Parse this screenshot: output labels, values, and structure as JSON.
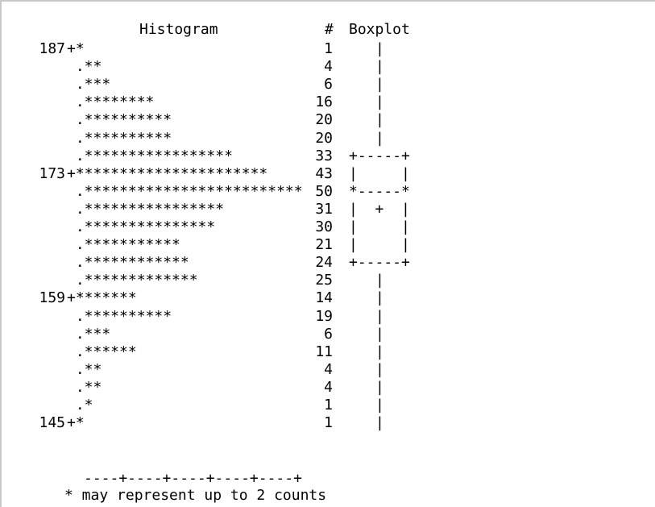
{
  "chart_data": {
    "type": "bar",
    "title": "Histogram",
    "count_header": "#",
    "boxplot_header": "Boxplot",
    "bin_marker": "+",
    "dot_marker": ".",
    "rows": [
      {
        "label": "187",
        "stars": 1,
        "count": 1
      },
      {
        "label": "",
        "stars": 2,
        "count": 4
      },
      {
        "label": "",
        "stars": 3,
        "count": 6
      },
      {
        "label": "",
        "stars": 8,
        "count": 16
      },
      {
        "label": "",
        "stars": 10,
        "count": 20
      },
      {
        "label": "",
        "stars": 10,
        "count": 20
      },
      {
        "label": "",
        "stars": 17,
        "count": 33
      },
      {
        "label": "173",
        "stars": 22,
        "count": 43
      },
      {
        "label": "",
        "stars": 25,
        "count": 50
      },
      {
        "label": "",
        "stars": 16,
        "count": 31
      },
      {
        "label": "",
        "stars": 15,
        "count": 30
      },
      {
        "label": "",
        "stars": 11,
        "count": 21
      },
      {
        "label": "",
        "stars": 12,
        "count": 24
      },
      {
        "label": "",
        "stars": 13,
        "count": 25
      },
      {
        "label": "159",
        "stars": 7,
        "count": 14
      },
      {
        "label": "",
        "stars": 10,
        "count": 19
      },
      {
        "label": "",
        "stars": 3,
        "count": 6
      },
      {
        "label": "",
        "stars": 6,
        "count": 11
      },
      {
        "label": "",
        "stars": 2,
        "count": 4
      },
      {
        "label": "",
        "stars": 2,
        "count": 4
      },
      {
        "label": "",
        "stars": 1,
        "count": 1
      },
      {
        "label": "145",
        "stars": 1,
        "count": 1
      }
    ],
    "boxplot": [
      "|",
      "|",
      "|",
      "|",
      "|",
      "|",
      "+-----+",
      "|     |",
      "*-----*",
      "|  +  |",
      "|     |",
      "|     |",
      "+-----+",
      "|",
      "|",
      "|",
      "|",
      "|",
      "|",
      "|",
      "|",
      "|"
    ],
    "axis_line": "----+----+----+----+----+",
    "footnote": "* may represent up to 2 counts",
    "counts_per_star": 2
  }
}
